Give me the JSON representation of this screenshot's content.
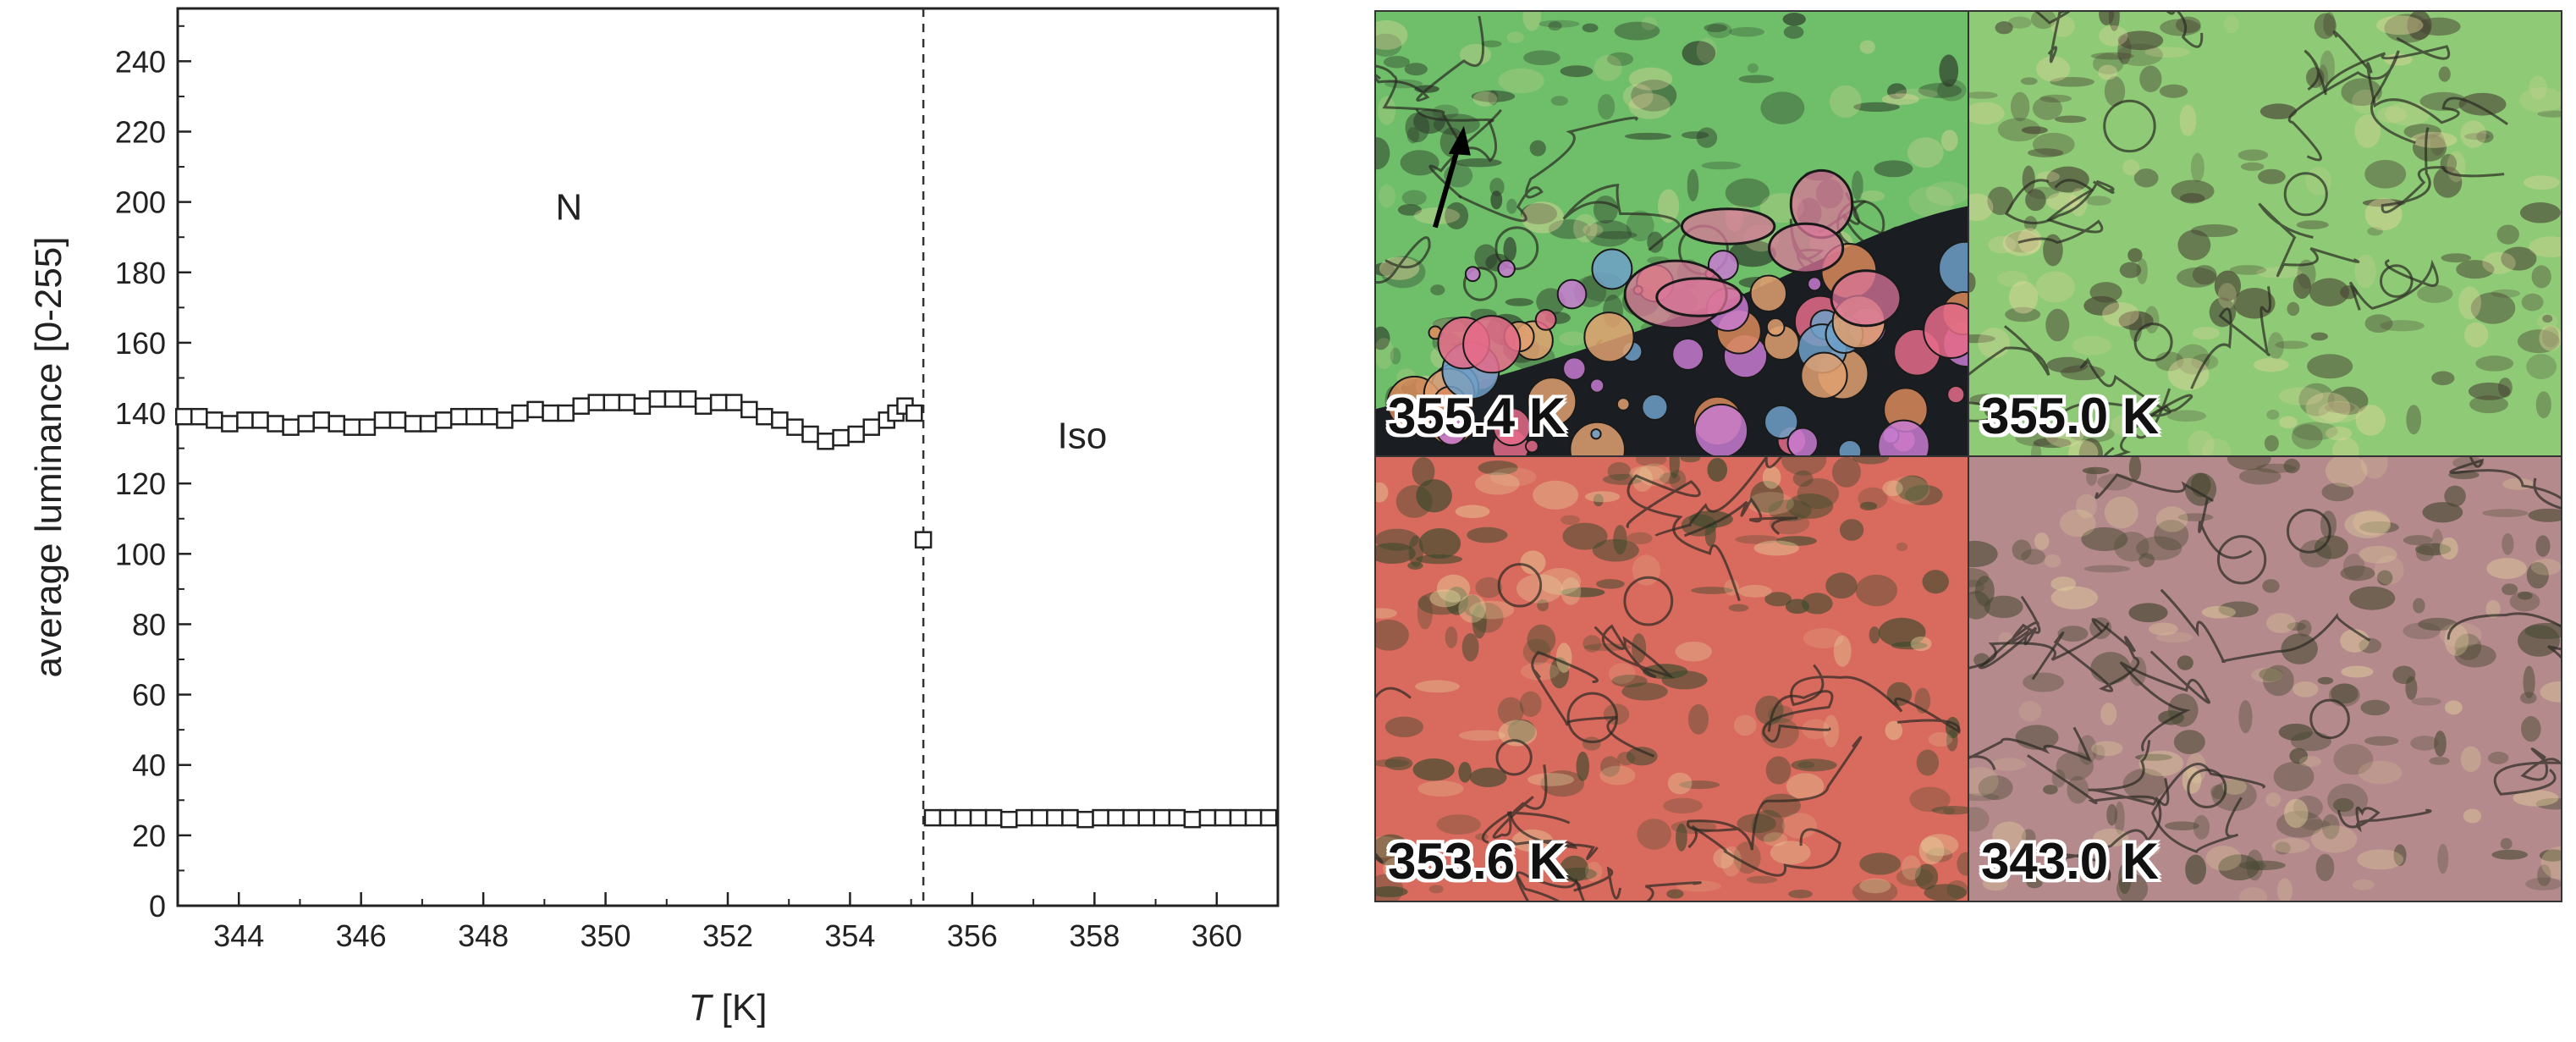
{
  "chart_data": {
    "type": "scatter",
    "xlabel_italic": "T",
    "xlabel_rest": " [K]",
    "ylabel": "average luminance [0-255]",
    "xlim": [
      343,
      361
    ],
    "ylim": [
      0,
      255
    ],
    "x_ticks": [
      "344",
      "346",
      "348",
      "350",
      "352",
      "354",
      "356",
      "358",
      "360"
    ],
    "y_ticks": [
      "0",
      "20",
      "40",
      "60",
      "80",
      "100",
      "120",
      "140",
      "160",
      "180",
      "200",
      "220",
      "240"
    ],
    "transition_T": 355.2,
    "region_labels": [
      {
        "text": "N",
        "x": 349.4,
        "y": 195
      },
      {
        "text": "Iso",
        "x": 357.8,
        "y": 130
      }
    ],
    "marker": "open-square",
    "grid": false,
    "series": [
      {
        "points": [
          [
            343.1,
            139
          ],
          [
            343.35,
            139
          ],
          [
            343.6,
            138
          ],
          [
            343.85,
            137
          ],
          [
            344.1,
            138
          ],
          [
            344.35,
            138
          ],
          [
            344.6,
            137
          ],
          [
            344.85,
            136
          ],
          [
            345.1,
            137
          ],
          [
            345.35,
            138
          ],
          [
            345.6,
            137
          ],
          [
            345.85,
            136
          ],
          [
            346.1,
            136
          ],
          [
            346.35,
            138
          ],
          [
            346.6,
            138
          ],
          [
            346.85,
            137
          ],
          [
            347.1,
            137
          ],
          [
            347.35,
            138
          ],
          [
            347.6,
            139
          ],
          [
            347.85,
            139
          ],
          [
            348.1,
            139
          ],
          [
            348.35,
            138
          ],
          [
            348.6,
            140
          ],
          [
            348.85,
            141
          ],
          [
            349.1,
            140
          ],
          [
            349.35,
            140
          ],
          [
            349.6,
            142
          ],
          [
            349.85,
            143
          ],
          [
            350.1,
            143
          ],
          [
            350.35,
            143
          ],
          [
            350.6,
            142
          ],
          [
            350.85,
            144
          ],
          [
            351.1,
            144
          ],
          [
            351.35,
            144
          ],
          [
            351.6,
            142
          ],
          [
            351.85,
            143
          ],
          [
            352.1,
            143
          ],
          [
            352.35,
            141
          ],
          [
            352.6,
            139
          ],
          [
            352.85,
            138
          ],
          [
            353.1,
            136
          ],
          [
            353.35,
            134
          ],
          [
            353.6,
            132
          ],
          [
            353.85,
            133
          ],
          [
            354.1,
            134
          ],
          [
            354.35,
            136
          ],
          [
            354.6,
            138
          ],
          [
            354.75,
            140
          ],
          [
            354.9,
            142
          ],
          [
            355.05,
            140
          ],
          [
            355.2,
            104
          ],
          [
            355.35,
            25
          ],
          [
            355.6,
            25
          ],
          [
            355.85,
            25
          ],
          [
            356.1,
            25
          ],
          [
            356.35,
            25
          ],
          [
            356.6,
            24.5
          ],
          [
            356.85,
            25
          ],
          [
            357.1,
            25
          ],
          [
            357.35,
            25
          ],
          [
            357.6,
            25
          ],
          [
            357.85,
            24.5
          ],
          [
            358.1,
            25
          ],
          [
            358.35,
            25
          ],
          [
            358.6,
            25
          ],
          [
            358.85,
            25
          ],
          [
            359.1,
            25
          ],
          [
            359.35,
            25
          ],
          [
            359.6,
            24.5
          ],
          [
            359.85,
            25
          ],
          [
            360.1,
            25
          ],
          [
            360.35,
            25
          ],
          [
            360.6,
            25
          ],
          [
            360.85,
            25
          ]
        ]
      }
    ]
  },
  "micrographs": [
    {
      "label": "355.4 K",
      "bg": "#6fbf6a",
      "accent": "#2c3a2a",
      "has_arrow": true,
      "droplets": true
    },
    {
      "label": "355.0 K",
      "bg": "#8fca76",
      "accent": "#4a4636",
      "has_arrow": false,
      "droplets": false
    },
    {
      "label": "353.6 K",
      "bg": "#d96a5e",
      "accent": "#3a4a2c",
      "has_arrow": false,
      "droplets": false
    },
    {
      "label": "343.0 K",
      "bg": "#b48a8c",
      "accent": "#4a4a34",
      "has_arrow": false,
      "droplets": false
    }
  ]
}
